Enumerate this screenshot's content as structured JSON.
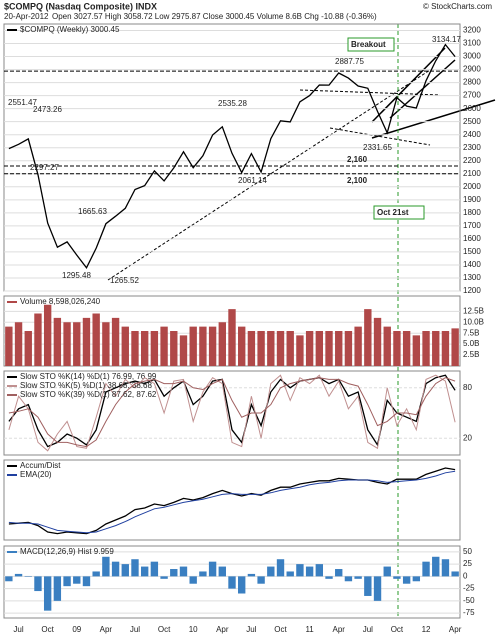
{
  "header": {
    "symbol": "$COMPQ (Nasdaq Composite) INDX",
    "date": "20-Apr-2012",
    "quote": "Open 3027.57 High 3058.72 Low 2975.87 Close 3000.45 Volume 8.6B Chg -10.88 (-0.36%)",
    "source": "© StockCharts.com"
  },
  "chart_data": [
    {
      "type": "line",
      "series": [
        {
          "name": "$COMPQ (Weekly) 3000.45",
          "color": "#000000",
          "values": [
            2293,
            2326,
            2368,
            2092,
            1721,
            1536,
            1577,
            1476,
            1378,
            1529,
            1717,
            1774,
            1835,
            1979,
            2009,
            2122,
            2045,
            2145,
            2269,
            2147,
            2238,
            2398,
            2461,
            2257,
            2109,
            2255,
            2114,
            2369,
            2507,
            2498,
            2653,
            2700,
            2782,
            2781,
            2874,
            2835,
            2774,
            2756,
            2579,
            2415,
            2684,
            2620,
            2605,
            2814,
            2967,
            3092,
            3000
          ]
        }
      ],
      "ylim": [
        1200,
        3250
      ],
      "yticks": [
        1200,
        1300,
        1400,
        1500,
        1600,
        1700,
        1800,
        1900,
        2000,
        2100,
        2200,
        2300,
        2400,
        2500,
        2600,
        2700,
        2800,
        2900,
        3000,
        3100,
        3200
      ],
      "grid": true,
      "price_labels": [
        2551.47,
        2473.26,
        2297.27,
        1665.63,
        1295.48,
        1265.52,
        2535.28,
        2887.75,
        2061.14,
        2331.65,
        3134.17
      ],
      "hlines": [
        {
          "value": 2160,
          "label": "2,160"
        },
        {
          "value": 2100,
          "label": "2,100"
        }
      ],
      "annotations": [
        "Breakout",
        "Oct 21st"
      ]
    },
    {
      "type": "bar",
      "series": [
        {
          "name": "Volume 8,598,026,240",
          "color": "#b04848",
          "values": [
            9,
            10,
            8,
            12,
            14,
            11,
            10,
            10,
            11,
            12,
            10,
            11,
            9,
            8,
            8,
            8,
            9,
            8,
            7,
            9,
            9,
            9,
            10,
            13,
            9,
            8,
            8,
            8,
            8,
            8,
            7,
            8,
            8,
            8,
            8,
            8,
            9,
            13,
            11,
            9,
            8,
            8,
            7,
            8,
            8,
            8,
            8.6
          ]
        }
      ],
      "ylim": [
        0,
        16
      ],
      "yticks": [
        {
          "value": 2.5,
          "label": "2.5B"
        },
        {
          "value": 5,
          "label": "5.0B"
        },
        {
          "value": 7.5,
          "label": "7.5B"
        },
        {
          "value": 10,
          "label": "10.0B"
        },
        {
          "value": 12.5,
          "label": "12.5B"
        }
      ],
      "grid": true
    },
    {
      "type": "line",
      "series": [
        {
          "name": "Slow STO %K(14) %D(1) 76.99, 76.99",
          "color": "#000000",
          "values": [
            40,
            55,
            60,
            30,
            10,
            15,
            25,
            20,
            12,
            30,
            75,
            80,
            85,
            88,
            85,
            90,
            70,
            80,
            88,
            60,
            70,
            88,
            90,
            30,
            15,
            60,
            35,
            75,
            90,
            80,
            88,
            90,
            92,
            85,
            90,
            70,
            75,
            30,
            12,
            65,
            50,
            45,
            40,
            85,
            92,
            95,
            77
          ]
        },
        {
          "name": "Slow STO %K(5) %D(1) 38.68, 38.68",
          "color": "#c09090",
          "values": [
            30,
            70,
            55,
            15,
            5,
            25,
            40,
            10,
            8,
            45,
            85,
            70,
            90,
            80,
            92,
            85,
            50,
            88,
            90,
            40,
            75,
            92,
            85,
            15,
            10,
            70,
            20,
            85,
            95,
            65,
            92,
            85,
            95,
            70,
            88,
            55,
            70,
            15,
            8,
            80,
            35,
            55,
            30,
            90,
            95,
            88,
            39
          ]
        },
        {
          "name": "Slow STO %K(39) %D(1) 87.62, 87.62",
          "color": "#a06060",
          "values": [
            50,
            52,
            55,
            45,
            25,
            15,
            15,
            12,
            10,
            18,
            40,
            60,
            75,
            85,
            88,
            90,
            85,
            85,
            88,
            80,
            78,
            85,
            90,
            65,
            45,
            50,
            50,
            60,
            80,
            85,
            88,
            90,
            92,
            90,
            90,
            85,
            82,
            60,
            35,
            40,
            50,
            50,
            48,
            70,
            85,
            92,
            88
          ]
        }
      ],
      "ylim": [
        0,
        100
      ],
      "yticks": [
        20,
        80
      ],
      "grid": true
    },
    {
      "type": "line",
      "series": [
        {
          "name": "Accum/Dist",
          "color": "#000000",
          "values": [
            20,
            21,
            22,
            18,
            10,
            8,
            10,
            9,
            8,
            12,
            20,
            25,
            30,
            38,
            40,
            45,
            43,
            47,
            52,
            50,
            53,
            58,
            62,
            58,
            55,
            58,
            56,
            62,
            66,
            66,
            70,
            72,
            74,
            74,
            77,
            76,
            75,
            75,
            72,
            70,
            76,
            76,
            76,
            82,
            86,
            90,
            88
          ]
        },
        {
          "name": "EMA(20)",
          "color": "#2040a0",
          "values": [
            22,
            21,
            21,
            20,
            16,
            12,
            11,
            10,
            9,
            10,
            14,
            18,
            23,
            29,
            34,
            39,
            41,
            44,
            47,
            49,
            51,
            54,
            57,
            58,
            57,
            57,
            57,
            59,
            62,
            64,
            66,
            69,
            71,
            72,
            74,
            75,
            75,
            75,
            74,
            72,
            73,
            74,
            75,
            77,
            80,
            84,
            86
          ]
        }
      ],
      "ylim": [
        0,
        100
      ]
    },
    {
      "type": "bar",
      "series": [
        {
          "name": "MACD(12,26,9) Hist 9.959",
          "color": "#3a7fc1",
          "values": [
            -10,
            5,
            0,
            -30,
            -70,
            -50,
            -20,
            -15,
            -20,
            10,
            40,
            30,
            25,
            35,
            20,
            30,
            -5,
            15,
            20,
            -15,
            10,
            30,
            20,
            -25,
            -35,
            5,
            -15,
            20,
            35,
            10,
            25,
            20,
            25,
            -5,
            15,
            -10,
            -5,
            -40,
            -50,
            20,
            -5,
            -15,
            -10,
            30,
            40,
            35,
            10
          ]
        }
      ],
      "ylim": [
        -85,
        62
      ],
      "yticks": [
        -75,
        -50,
        -25,
        0,
        25,
        50
      ],
      "grid": true,
      "categories": [
        null,
        "Jul",
        null,
        null,
        "Oct",
        null,
        null,
        "09",
        null,
        null,
        "Apr",
        null,
        null,
        "Jul",
        null,
        null,
        "Oct",
        null,
        null,
        "10",
        null,
        null,
        "Apr",
        null,
        null,
        "Jul",
        null,
        null,
        "Oct",
        null,
        null,
        "11",
        null,
        null,
        "Apr",
        null,
        null,
        "Jul",
        null,
        null,
        "Oct",
        null,
        null,
        "12",
        null,
        null,
        "Apr"
      ]
    }
  ]
}
